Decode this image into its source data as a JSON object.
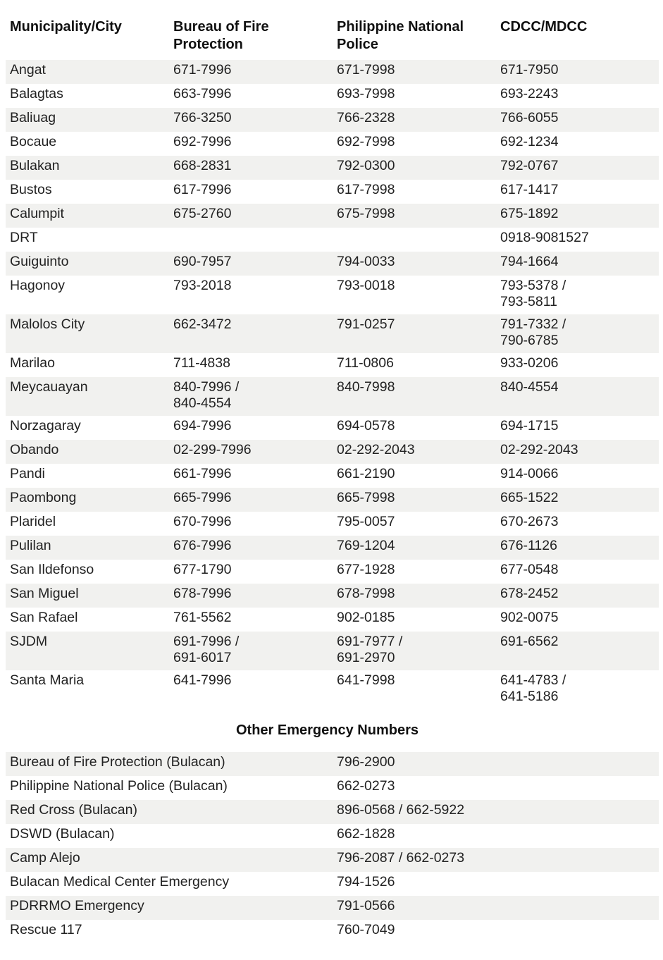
{
  "headers": [
    "Municipality/City",
    "Bureau of Fire Protection",
    "Philippine National Police",
    "CDCC/MDCC"
  ],
  "rows": [
    {
      "m": "Angat",
      "bfp": "671-7996",
      "pnp": "671-7998",
      "cdcc": "671-7950"
    },
    {
      "m": "Balagtas",
      "bfp": "663-7996",
      "pnp": "693-7998",
      "cdcc": "693-2243"
    },
    {
      "m": "Baliuag",
      "bfp": "766-3250",
      "pnp": "766-2328",
      "cdcc": "766-6055"
    },
    {
      "m": "Bocaue",
      "bfp": "692-7996",
      "pnp": "692-7998",
      "cdcc": "692-1234"
    },
    {
      "m": "Bulakan",
      "bfp": "668-2831",
      "pnp": "792-0300",
      "cdcc": "792-0767"
    },
    {
      "m": "Bustos",
      "bfp": "617-7996",
      "pnp": "617-7998",
      "cdcc": "617-1417"
    },
    {
      "m": "Calumpit",
      "bfp": "675-2760",
      "pnp": "675-7998",
      "cdcc": "675-1892"
    },
    {
      "m": "DRT",
      "bfp": "",
      "pnp": "",
      "cdcc": "0918-9081527"
    },
    {
      "m": "Guiguinto",
      "bfp": "690-7957",
      "pnp": "794-0033",
      "cdcc": "794-1664"
    },
    {
      "m": "Hagonoy",
      "bfp": "793-2018",
      "pnp": "793-0018",
      "cdcc": [
        "793-5378 /",
        "793-5811"
      ]
    },
    {
      "m": "Malolos City",
      "bfp": "662-3472",
      "pnp": "791-0257",
      "cdcc": [
        "791-7332 /",
        "790-6785"
      ]
    },
    {
      "m": "Marilao",
      "bfp": "711-4838",
      "pnp": "711-0806",
      "cdcc": "933-0206"
    },
    {
      "m": "Meycauayan",
      "bfp": [
        "840-7996 /",
        "840-4554"
      ],
      "pnp": "840-7998",
      "cdcc": "840-4554"
    },
    {
      "m": "Norzagaray",
      "bfp": "694-7996",
      "pnp": "694-0578",
      "cdcc": "694-1715"
    },
    {
      "m": "Obando",
      "bfp": "02-299-7996",
      "pnp": "02-292-2043",
      "cdcc": "02-292-2043"
    },
    {
      "m": "Pandi",
      "bfp": "661-7996",
      "pnp": "661-2190",
      "cdcc": "914-0066"
    },
    {
      "m": "Paombong",
      "bfp": "665-7996",
      "pnp": "665-7998",
      "cdcc": "665-1522"
    },
    {
      "m": "Plaridel",
      "bfp": "670-7996",
      "pnp": "795-0057",
      "cdcc": "670-2673"
    },
    {
      "m": "Pulilan",
      "bfp": "676-7996",
      "pnp": "769-1204",
      "cdcc": "676-1126"
    },
    {
      "m": "San Ildefonso",
      "bfp": "677-1790",
      "pnp": "677-1928",
      "cdcc": "677-0548"
    },
    {
      "m": "San Miguel",
      "bfp": "678-7996",
      "pnp": "678-7998",
      "cdcc": "678-2452"
    },
    {
      "m": "San Rafael",
      "bfp": "761-5562",
      "pnp": "902-0185",
      "cdcc": "902-0075"
    },
    {
      "m": "SJDM",
      "bfp": [
        "691-7996 /",
        "691-6017"
      ],
      "pnp": [
        "691-7977 /",
        "691-2970"
      ],
      "cdcc": "691-6562"
    },
    {
      "m": "Santa Maria",
      "bfp": "641-7996",
      "pnp": "641-7998",
      "cdcc": [
        "641-4783 /",
        "641-5186"
      ]
    }
  ],
  "other_title": "Other Emergency Numbers",
  "other": [
    {
      "name": "Bureau of Fire Protection (Bulacan)",
      "num": "796-2900"
    },
    {
      "name": "Philippine National Police (Bulacan)",
      "num": "662-0273"
    },
    {
      "name": "Red Cross (Bulacan)",
      "num": "896-0568 / 662-5922"
    },
    {
      "name": "DSWD (Bulacan)",
      "num": "662-1828"
    },
    {
      "name": "Camp Alejo",
      "num": "796-2087 / 662-0273"
    },
    {
      "name": "Bulacan Medical Center Emergency",
      "num": "794-1526"
    },
    {
      "name": "PDRRMO Emergency",
      "num": "791-0566"
    },
    {
      "name": "Rescue 117",
      "num": "760-7049"
    }
  ]
}
